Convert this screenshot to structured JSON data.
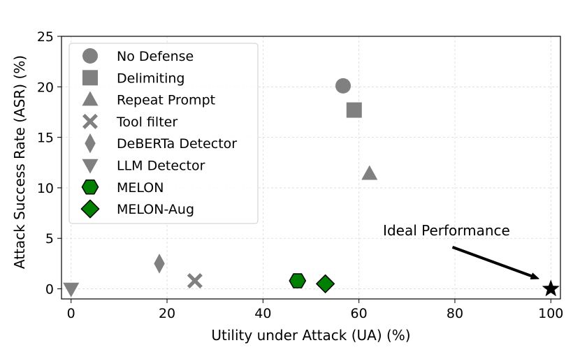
{
  "chart_data": {
    "type": "scatter",
    "xlabel": "Utility under Attack (UA) (%)",
    "ylabel": "Attack Success Rate (ASR) (%)",
    "xlim": [
      -2,
      102
    ],
    "ylim": [
      -1,
      25
    ],
    "xticks": [
      0,
      20,
      40,
      60,
      80,
      100
    ],
    "yticks": [
      0,
      5,
      10,
      15,
      20,
      25
    ],
    "grid": true,
    "legend_position": "upper-left",
    "series": [
      {
        "name": "No Defense",
        "marker": "circle",
        "color": "#808080",
        "x": 56.7,
        "y": 20.1
      },
      {
        "name": "Delimiting",
        "marker": "square",
        "color": "#808080",
        "x": 59.0,
        "y": 17.7
      },
      {
        "name": "Repeat Prompt",
        "marker": "triangle-up",
        "color": "#808080",
        "x": 62.2,
        "y": 11.4
      },
      {
        "name": "Tool filter",
        "marker": "x",
        "color": "#808080",
        "x": 25.8,
        "y": 0.8
      },
      {
        "name": "DeBERTa Detector",
        "marker": "thin-diamond",
        "color": "#808080",
        "x": 18.4,
        "y": 2.5
      },
      {
        "name": "LLM Detector",
        "marker": "triangle-down",
        "color": "#808080",
        "x": 0.0,
        "y": 0.0
      },
      {
        "name": "MELON",
        "marker": "hexagon",
        "color": "#008000",
        "x": 47.2,
        "y": 0.8
      },
      {
        "name": "MELON-Aug",
        "marker": "diamond",
        "color": "#008000",
        "x": 53.0,
        "y": 0.5
      }
    ],
    "ideal_point": {
      "marker": "star",
      "color": "#000000",
      "x": 100,
      "y": 0
    },
    "annotation": {
      "text": "Ideal Performance",
      "text_x": 80,
      "text_y": 5.5,
      "arrow_to_x": 97.5,
      "arrow_to_y": 1.0
    }
  }
}
